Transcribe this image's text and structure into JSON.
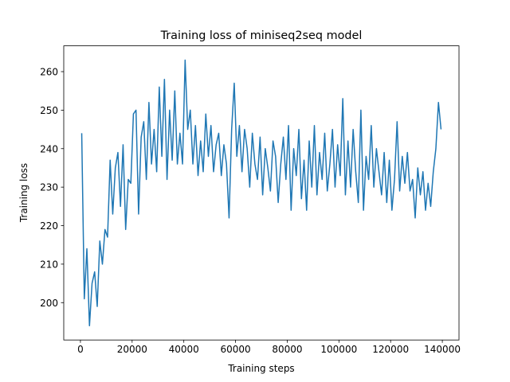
{
  "chart_data": {
    "type": "line",
    "title": "Training loss of miniseq2seq model",
    "x_label": "Training steps",
    "y_label": "Training loss",
    "x": [
      500,
      1500,
      2500,
      3500,
      4500,
      5500,
      6500,
      7500,
      8500,
      9500,
      10500,
      11500,
      12500,
      13500,
      14500,
      15500,
      16500,
      17500,
      18500,
      19500,
      20500,
      21500,
      22500,
      23500,
      24500,
      25500,
      26500,
      27500,
      28500,
      29500,
      30500,
      31500,
      32500,
      33500,
      34500,
      35500,
      36500,
      37500,
      38500,
      39500,
      40500,
      41500,
      42500,
      43500,
      44500,
      45500,
      46500,
      47500,
      48500,
      49500,
      50500,
      51500,
      52500,
      53500,
      54500,
      55500,
      56500,
      57500,
      58500,
      59500,
      60500,
      61500,
      62500,
      63500,
      64500,
      65500,
      66500,
      67500,
      68500,
      69500,
      70500,
      71500,
      72500,
      73500,
      74500,
      75500,
      76500,
      77500,
      78500,
      79500,
      80500,
      81500,
      82500,
      83500,
      84500,
      85500,
      86500,
      87500,
      88500,
      89500,
      90500,
      91500,
      92500,
      93500,
      94500,
      95500,
      96500,
      97500,
      98500,
      99500,
      100500,
      101500,
      102500,
      103500,
      104500,
      105500,
      106500,
      107500,
      108500,
      109500,
      110500,
      111500,
      112500,
      113500,
      114500,
      115500,
      116500,
      117500,
      118500,
      119500,
      120500,
      121500,
      122500,
      123500,
      124500,
      125500,
      126500,
      127500,
      128500,
      129500,
      130500,
      131500,
      132500,
      133500,
      134500,
      135500,
      136500,
      137500,
      138500,
      139500
    ],
    "series": [
      {
        "name": "Training loss",
        "color": "#1f77b4",
        "values": [
          244,
          201,
          214,
          194,
          205,
          208,
          199,
          216,
          210,
          219,
          217,
          237,
          223,
          235,
          239,
          225,
          241,
          219,
          232,
          231,
          249,
          250,
          223,
          243,
          247,
          232,
          252,
          236,
          245,
          234,
          256,
          238,
          258,
          232,
          250,
          237,
          255,
          236,
          244,
          236,
          263,
          245,
          250,
          236,
          246,
          233,
          242,
          234,
          249,
          238,
          246,
          234,
          241,
          244,
          233,
          241,
          236,
          222,
          245,
          257,
          238,
          246,
          234,
          245,
          240,
          230,
          244,
          236,
          232,
          243,
          228,
          240,
          235,
          229,
          242,
          238,
          226,
          236,
          243,
          232,
          246,
          224,
          240,
          233,
          245,
          227,
          237,
          224,
          242,
          230,
          246,
          228,
          239,
          232,
          244,
          229,
          236,
          245,
          230,
          241,
          233,
          253,
          228,
          242,
          230,
          245,
          234,
          226,
          250,
          224,
          238,
          232,
          246,
          230,
          240,
          234,
          228,
          239,
          226,
          237,
          224,
          232,
          247,
          229,
          238,
          231,
          239,
          229,
          232,
          222,
          235,
          228,
          234,
          224,
          231,
          225,
          234,
          240,
          252,
          245
        ]
      }
    ],
    "xlim": [
      -6450,
      146450
    ],
    "ylim": [
      190.3,
      266.7
    ],
    "xticks": [
      0,
      20000,
      40000,
      60000,
      80000,
      100000,
      120000,
      140000
    ],
    "yticks": [
      200,
      210,
      220,
      230,
      240,
      250,
      260
    ]
  }
}
